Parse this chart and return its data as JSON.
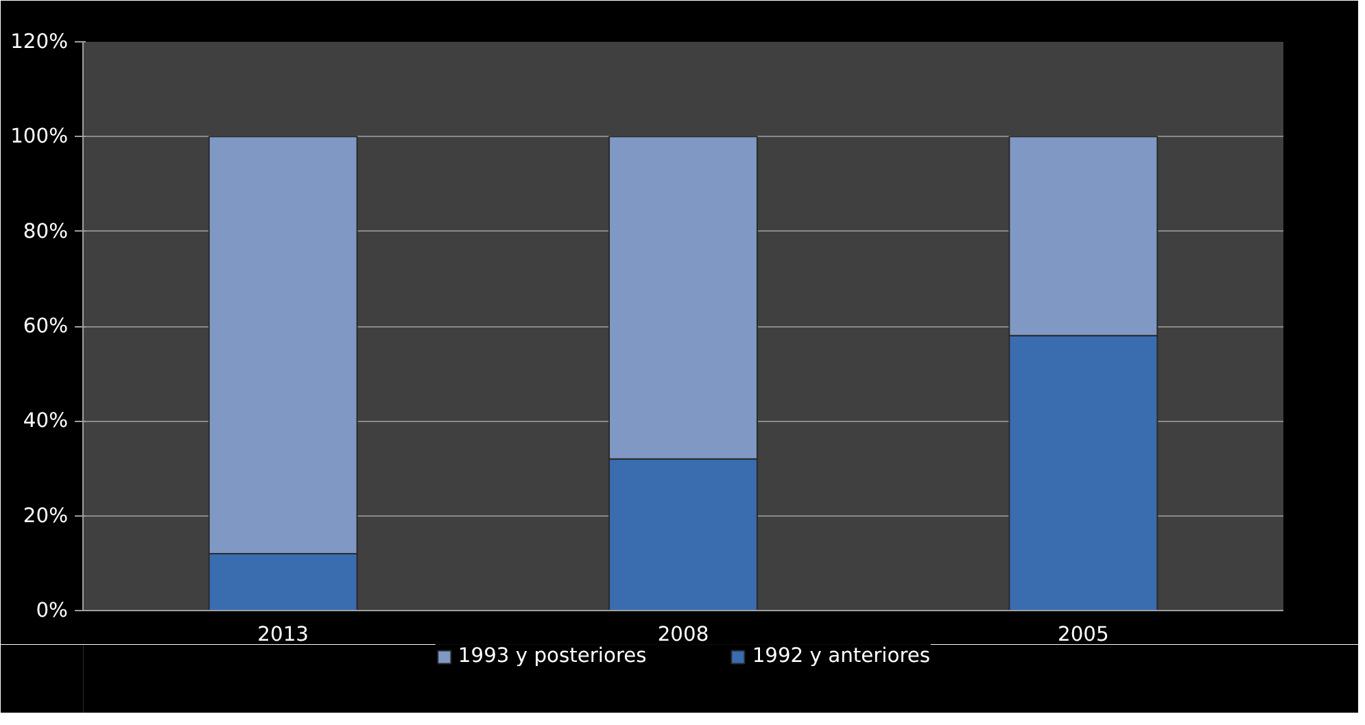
{
  "chart_data": {
    "type": "bar",
    "stacked": true,
    "categories": [
      "2013",
      "2008",
      "2005"
    ],
    "series": [
      {
        "name": "1992 y anteriores",
        "color": "#3a6cb0",
        "values": [
          12,
          32,
          58
        ]
      },
      {
        "name": "1993 y posteriores",
        "color": "#8099c4",
        "values": [
          88,
          68,
          42
        ]
      }
    ],
    "ylim": [
      0,
      120
    ],
    "yticks": [
      {
        "value": 0,
        "label": "0%"
      },
      {
        "value": 20,
        "label": "20%"
      },
      {
        "value": 40,
        "label": "40%"
      },
      {
        "value": 60,
        "label": "60%"
      },
      {
        "value": 80,
        "label": "80%"
      },
      {
        "value": 100,
        "label": "100%"
      },
      {
        "value": 120,
        "label": "120%"
      }
    ],
    "grid": "y",
    "legend": "bottom"
  }
}
